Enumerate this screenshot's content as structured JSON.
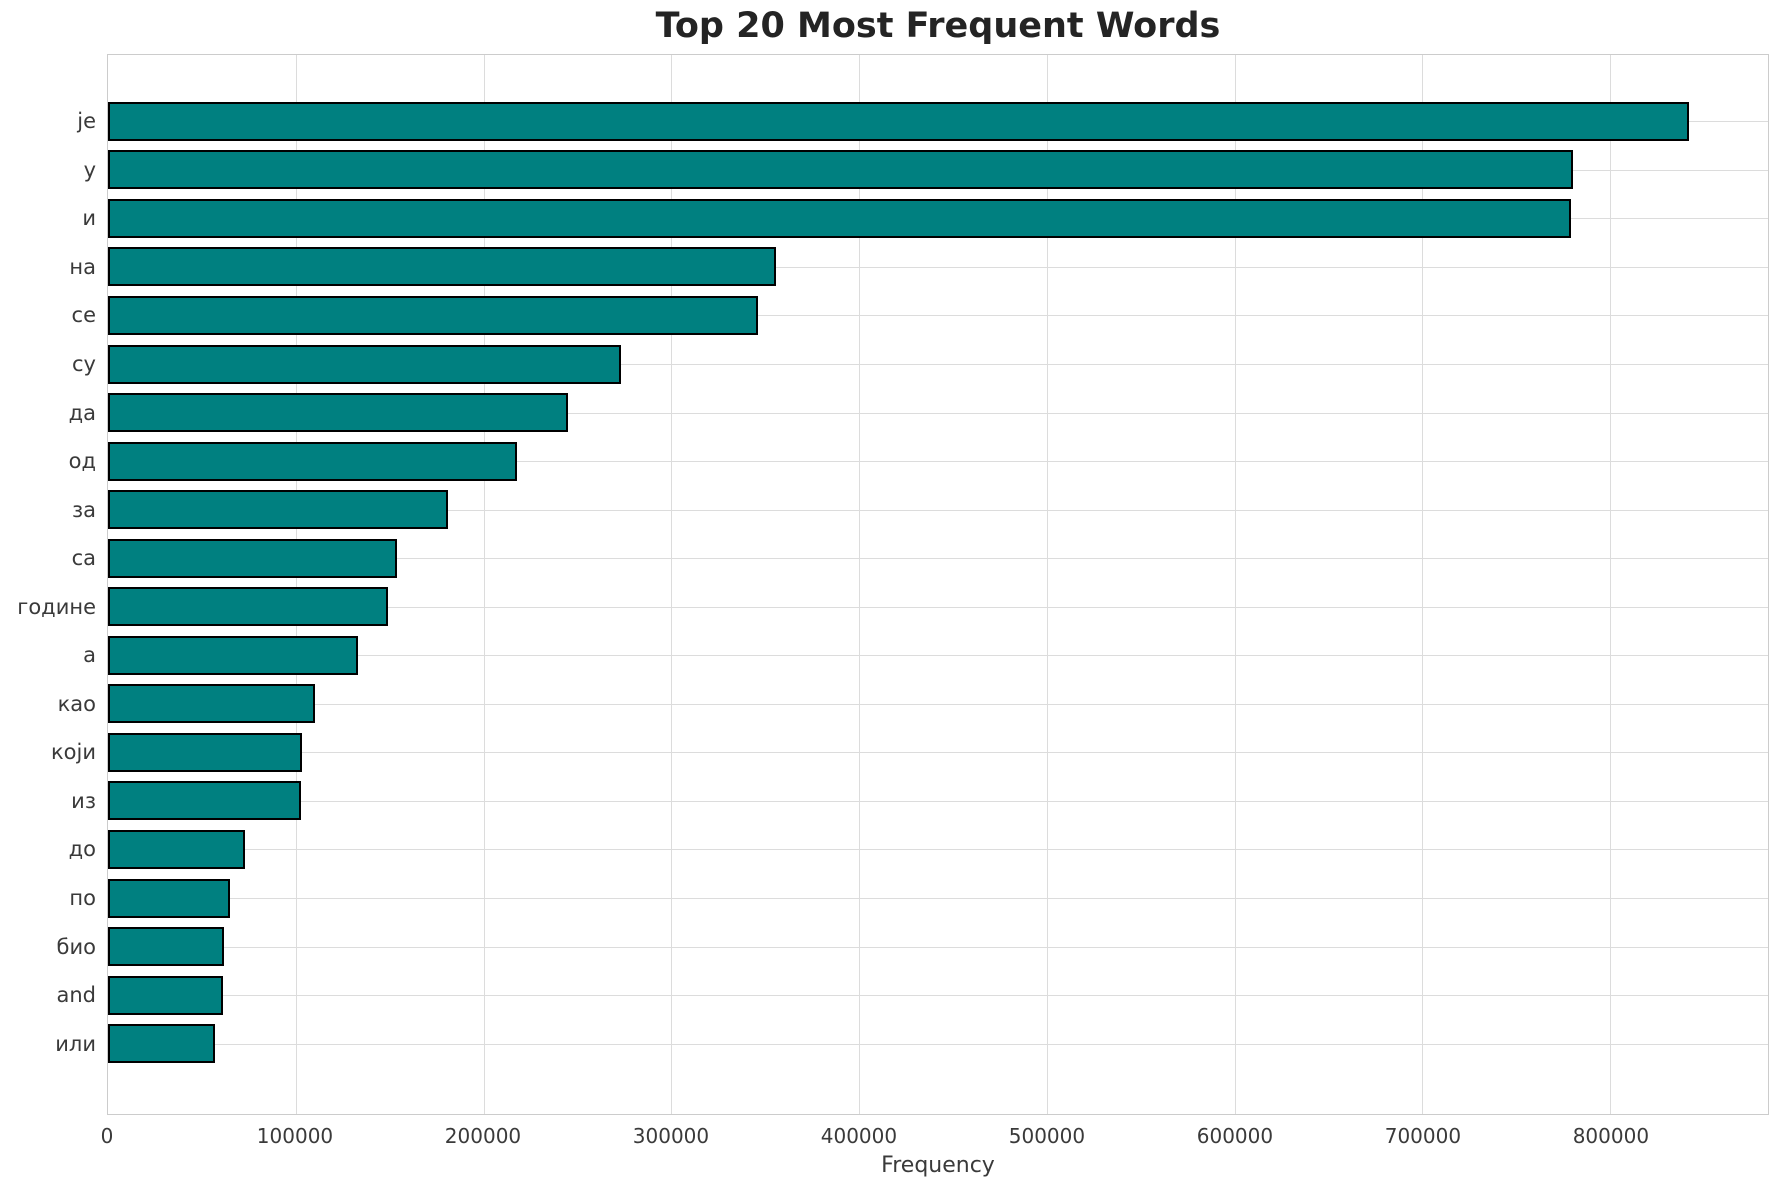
{
  "chart_data": {
    "type": "bar",
    "orientation": "horizontal",
    "title": "Top 20 Most Frequent Words",
    "xlabel": "Frequency",
    "ylabel": "",
    "categories": [
      "је",
      "у",
      "и",
      "на",
      "се",
      "су",
      "да",
      "од",
      "за",
      "са",
      "године",
      "а",
      "као",
      "који",
      "из",
      "до",
      "по",
      "био",
      "and",
      "или"
    ],
    "values": [
      842000,
      780000,
      779000,
      356000,
      346000,
      273000,
      245000,
      218000,
      181000,
      154000,
      149000,
      133000,
      110000,
      103500,
      103000,
      73000,
      65000,
      62000,
      61000,
      57000
    ],
    "xlim": [
      0,
      884100
    ],
    "xticks": [
      0,
      100000,
      200000,
      300000,
      400000,
      500000,
      600000,
      700000,
      800000
    ],
    "grid": true,
    "legend": "none",
    "bar_color": "#008080",
    "bar_edge_color": "#000000",
    "grid_color": "#dcdcdc",
    "background_color": "#ffffff"
  }
}
